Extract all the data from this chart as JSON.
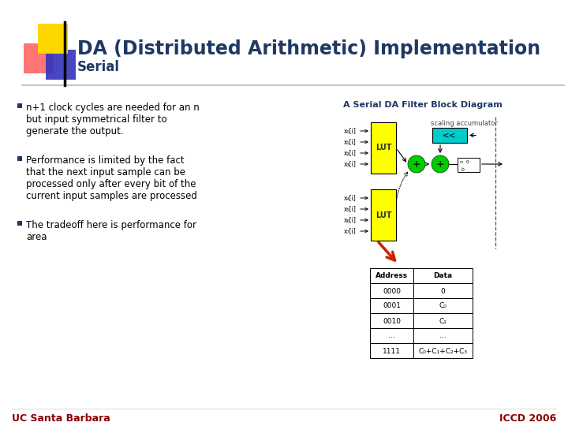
{
  "title": "DA (Distributed Arithmetic) Implementation",
  "subtitle": "Serial",
  "bg_color": "#FFFFFF",
  "title_color": "#1F3864",
  "subtitle_color": "#1F3864",
  "footer_left": "UC Santa Barbara",
  "footer_right": "ICCD 2006",
  "footer_color": "#8B0000",
  "diagram_title": "A Serial DA Filter Block Diagram",
  "diagram_title_color": "#1F3864",
  "bullets": [
    "n+1 clock cycles are needed for an n\nbut input symmetrical filter to\ngenerate the output.",
    "Performance is limited by the fact\nthat the next input sample can be\nprocessed only after every bit of the\ncurrent input samples are processed",
    "The tradeoff here is performance for\narea"
  ],
  "bullet_color": "#000000",
  "bullet_marker_color": "#1F3864",
  "lut_color": "#FFFF00",
  "lut_border": "#000000",
  "adder_color": "#00CC00",
  "shift_color": "#00CCCC",
  "table_header": [
    "Address",
    "Data"
  ],
  "table_rows": [
    [
      "0000",
      "0"
    ],
    [
      "0001",
      "C₀"
    ],
    [
      "0010",
      "C₁"
    ],
    [
      "...",
      "..."
    ],
    [
      "1111",
      "C₀+C₁+C₂+C₃"
    ]
  ],
  "input_labels_top": [
    "x₀[i]",
    "x₁[i]",
    "x₂[i]",
    "x₃[i]"
  ],
  "input_labels_bot": [
    "x₄[i]",
    "x₅[i]",
    "x₆[i]",
    "x₇[i]"
  ],
  "scaling_label": "scaling accumulator"
}
